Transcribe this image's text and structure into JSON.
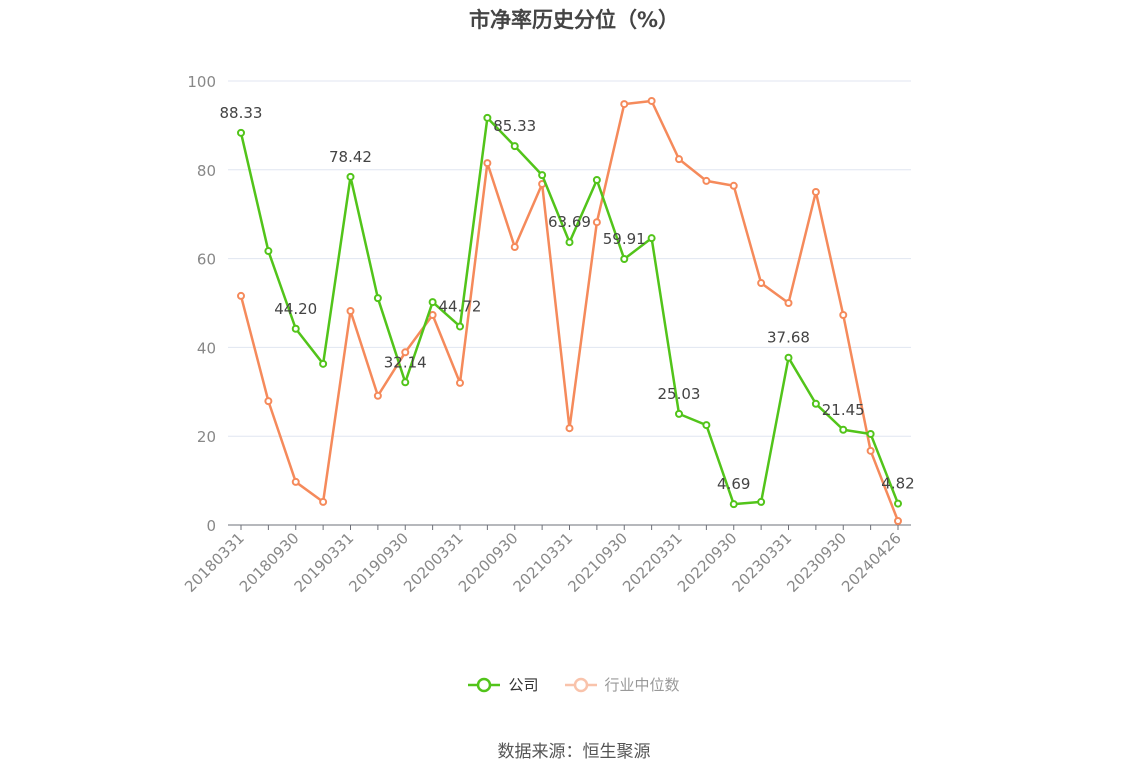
{
  "chart_data": {
    "type": "line",
    "title": "市净率历史分位（%）",
    "xlabel": "",
    "ylabel": "",
    "ylim": [
      0,
      100
    ],
    "yticks": [
      0,
      20,
      40,
      60,
      80,
      100
    ],
    "grid": true,
    "legend_position": "bottom-center",
    "x": [
      "20180331",
      "20180630",
      "20180930",
      "20181231",
      "20190331",
      "20190630",
      "20190930",
      "20191231",
      "20200331",
      "20200630",
      "20200930",
      "20201231",
      "20210331",
      "20210630",
      "20210930",
      "20211231",
      "20220331",
      "20220630",
      "20220930",
      "20221231",
      "20230331",
      "20230630",
      "20230930",
      "20231231",
      "20240426"
    ],
    "xtick_labels": [
      "20180331",
      "20180930",
      "20190331",
      "20190930",
      "20200331",
      "20200930",
      "20210331",
      "20210930",
      "20220331",
      "20220930",
      "20230331",
      "20230930",
      "20240426"
    ],
    "series": [
      {
        "name": "公司",
        "color": "#52c41a",
        "values": [
          88.33,
          61.7,
          44.2,
          36.3,
          78.42,
          51.1,
          32.14,
          50.2,
          44.72,
          91.7,
          85.33,
          78.8,
          63.69,
          77.7,
          59.91,
          64.6,
          25.03,
          22.5,
          4.69,
          5.2,
          37.68,
          27.3,
          21.45,
          20.5,
          4.82
        ],
        "labeled_indices": [
          0,
          2,
          4,
          6,
          8,
          10,
          12,
          14,
          16,
          18,
          20,
          22,
          24
        ]
      },
      {
        "name": "行业中位数",
        "color": "#f58a5b",
        "values": [
          51.6,
          27.9,
          9.7,
          5.2,
          48.2,
          29.1,
          38.9,
          47.3,
          32.0,
          81.5,
          62.6,
          76.8,
          21.8,
          68.2,
          94.8,
          95.5,
          82.4,
          77.5,
          76.4,
          54.5,
          50.0,
          75.0,
          47.3,
          16.7,
          0.9
        ]
      }
    ]
  },
  "source": "数据来源：恒生聚源"
}
